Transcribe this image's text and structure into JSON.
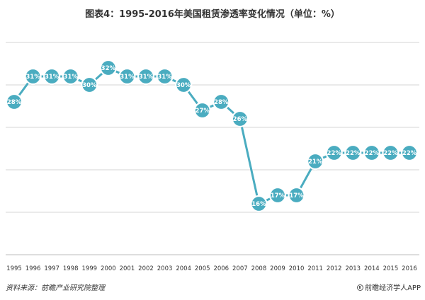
{
  "title": "图表4：1995-2016年美国租赁渗透率变化情况（单位：%）",
  "footer": {
    "source": "资料来源：前瞻产业研究院整理",
    "brand": "前瞻经济学人APP"
  },
  "colors": {
    "series": "#4aacc0",
    "grid": "#d6d6d6",
    "label_text": "#ffffff"
  },
  "chart_data": {
    "type": "line",
    "title": "图表4：1995-2016年美国租赁渗透率变化情况（单位：%）",
    "xlabel": "",
    "ylabel": "",
    "x": [
      "1995",
      "1996",
      "1997",
      "1998",
      "1999",
      "2000",
      "2001",
      "2002",
      "2003",
      "2004",
      "2005",
      "2006",
      "2007",
      "2008",
      "2009",
      "2010",
      "2011",
      "2012",
      "2013",
      "2014",
      "2015",
      "2016"
    ],
    "series": [
      {
        "values": [
          28,
          31,
          31,
          31,
          30,
          32,
          31,
          31,
          31,
          30,
          27,
          28,
          26,
          16,
          17,
          17,
          21,
          22,
          22,
          22,
          22,
          22
        ],
        "labels": [
          "28%",
          "31%",
          "31%",
          "31%",
          "30%",
          "32%",
          "31%",
          "31%",
          "31%",
          "30%",
          "27%",
          "28%",
          "26%",
          "16%",
          "17%",
          "17%",
          "21%",
          "22%",
          "22%",
          "22%",
          "22%",
          "22%"
        ]
      }
    ],
    "ylim": [
      10,
      35
    ],
    "grid": true,
    "legend": "none",
    "y_ticks_shown": false
  }
}
